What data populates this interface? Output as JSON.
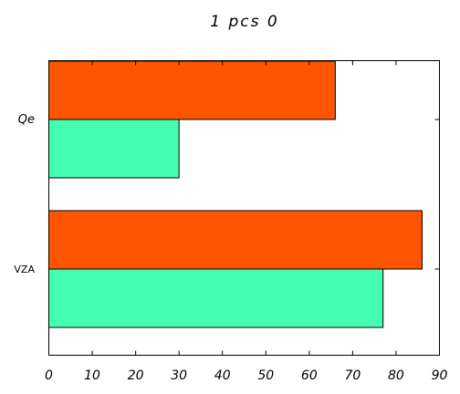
{
  "chart_data": {
    "type": "bar",
    "orientation": "horizontal",
    "title": "1 pcs 0",
    "xlabel": "",
    "ylabel": "",
    "categories": [
      "Qe",
      "VZA"
    ],
    "series": [
      {
        "values": [
          66,
          86
        ],
        "color": "#ff5500"
      },
      {
        "values": [
          30,
          77
        ],
        "color": "#44ffb1"
      }
    ],
    "xlim": [
      0,
      90
    ],
    "xticks": [
      "0",
      "10",
      "20",
      "30",
      "40",
      "50",
      "60",
      "70",
      "80",
      "90"
    ],
    "grid": false,
    "legend": "none"
  }
}
